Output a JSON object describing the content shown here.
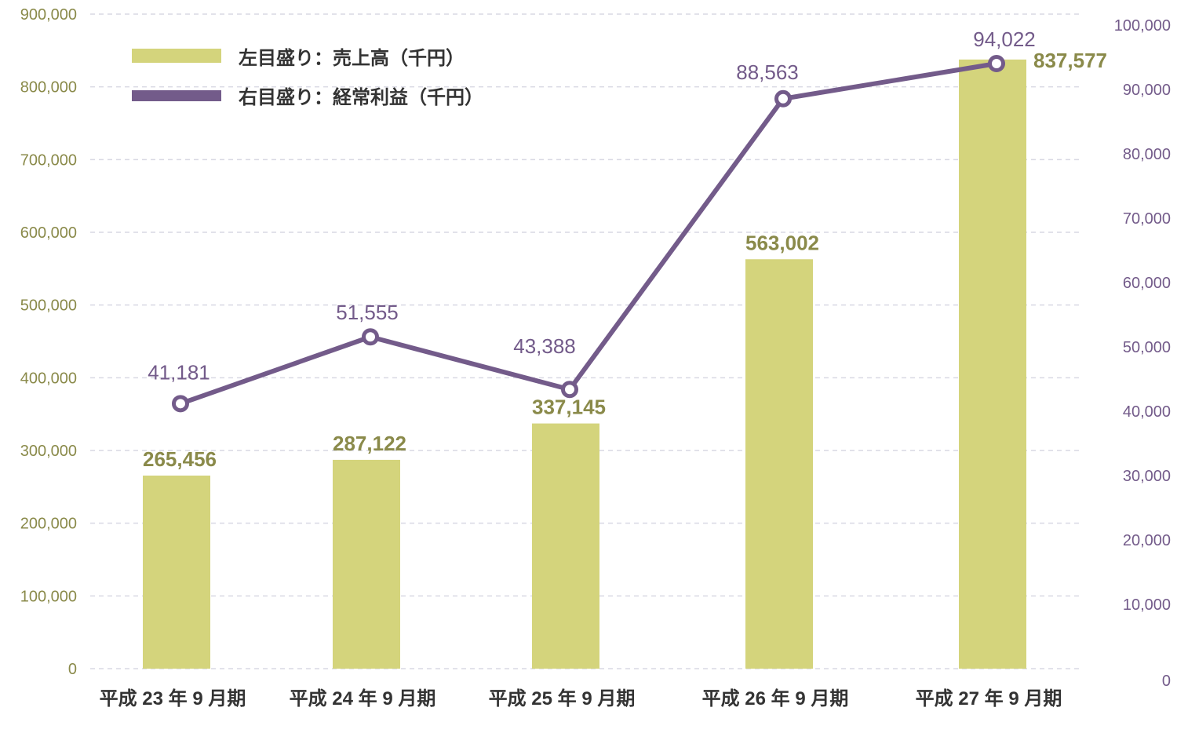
{
  "chart_data": {
    "type": "bar",
    "categories": [
      "平成 23 年 9 月期",
      "平成 24 年 9 月期",
      "平成 25 年 9 月期",
      "平成 26 年 9 月期",
      "平成 27 年 9 月期"
    ],
    "series": [
      {
        "name": "左目盛り：売上高（千円）",
        "type": "bar",
        "axis": "left",
        "values": [
          265456,
          287122,
          337145,
          563002,
          837577
        ],
        "labels": [
          "265,456",
          "287,122",
          "337,145",
          "563,002",
          "837,577"
        ]
      },
      {
        "name": "右目盛り：経常利益（千円）",
        "type": "line",
        "axis": "right",
        "values": [
          41181,
          51555,
          43388,
          88563,
          94022
        ],
        "labels": [
          "41,181",
          "51,555",
          "43,388",
          "88,563",
          "94,022"
        ]
      }
    ],
    "left_axis": {
      "ylim": [
        0,
        900000
      ],
      "ticks": [
        "0",
        "100,000",
        "200,000",
        "300,000",
        "400,000",
        "500,000",
        "600,000",
        "700,000",
        "800,000",
        "900,000"
      ]
    },
    "right_axis": {
      "ylim": [
        0,
        100000
      ],
      "ticks": [
        "0",
        "10,000",
        "20,000",
        "30,000",
        "40,000",
        "50,000",
        "60,000",
        "70,000",
        "80,000",
        "90,000",
        "100,000"
      ]
    },
    "grid": true,
    "legend_position": "top-left",
    "colors": {
      "bar": "#d4d47c",
      "bar_text": "#8a8a4a",
      "line": "#735b8a",
      "line_text": "#735b8a",
      "grid": "#d9d9e4"
    }
  }
}
